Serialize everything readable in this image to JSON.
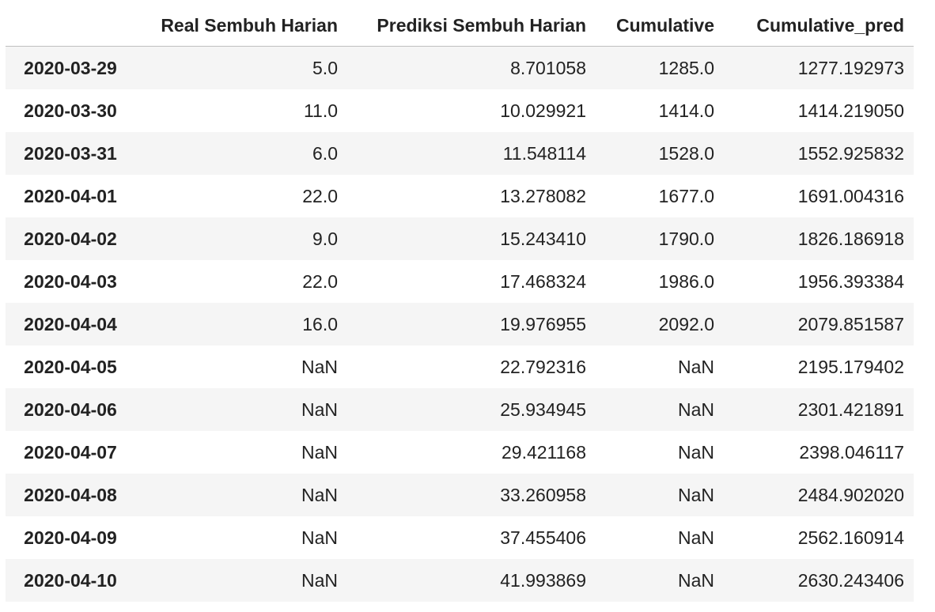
{
  "table": {
    "index_header": "",
    "columns": [
      "Real Sembuh Harian",
      "Prediksi Sembuh Harian",
      "Cumulative",
      "Cumulative_pred"
    ],
    "rows": [
      {
        "index": "2020-03-29",
        "values": [
          "5.0",
          "8.701058",
          "1285.0",
          "1277.192973"
        ]
      },
      {
        "index": "2020-03-30",
        "values": [
          "11.0",
          "10.029921",
          "1414.0",
          "1414.219050"
        ]
      },
      {
        "index": "2020-03-31",
        "values": [
          "6.0",
          "11.548114",
          "1528.0",
          "1552.925832"
        ]
      },
      {
        "index": "2020-04-01",
        "values": [
          "22.0",
          "13.278082",
          "1677.0",
          "1691.004316"
        ]
      },
      {
        "index": "2020-04-02",
        "values": [
          "9.0",
          "15.243410",
          "1790.0",
          "1826.186918"
        ]
      },
      {
        "index": "2020-04-03",
        "values": [
          "22.0",
          "17.468324",
          "1986.0",
          "1956.393384"
        ]
      },
      {
        "index": "2020-04-04",
        "values": [
          "16.0",
          "19.976955",
          "2092.0",
          "2079.851587"
        ]
      },
      {
        "index": "2020-04-05",
        "values": [
          "NaN",
          "22.792316",
          "NaN",
          "2195.179402"
        ]
      },
      {
        "index": "2020-04-06",
        "values": [
          "NaN",
          "25.934945",
          "NaN",
          "2301.421891"
        ]
      },
      {
        "index": "2020-04-07",
        "values": [
          "NaN",
          "29.421168",
          "NaN",
          "2398.046117"
        ]
      },
      {
        "index": "2020-04-08",
        "values": [
          "NaN",
          "33.260958",
          "NaN",
          "2484.902020"
        ]
      },
      {
        "index": "2020-04-09",
        "values": [
          "NaN",
          "37.455406",
          "NaN",
          "2562.160914"
        ]
      },
      {
        "index": "2020-04-10",
        "values": [
          "NaN",
          "41.993869",
          "NaN",
          "2630.243406"
        ]
      }
    ]
  },
  "colors": {
    "stripe": "#f5f5f5",
    "text": "#222222",
    "header_rule": "#bfbfbf"
  }
}
